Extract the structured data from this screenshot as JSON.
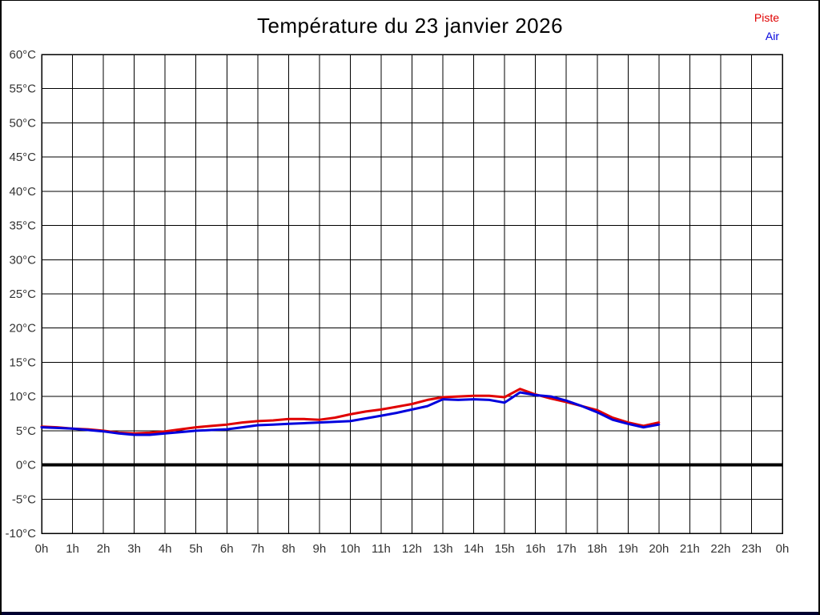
{
  "page": {
    "background": "#ffffff",
    "border_color": "#000000",
    "footer_bar_color": "#000030"
  },
  "header": {
    "title": "Température du 23 janvier 2026"
  },
  "legend": {
    "items": [
      {
        "label": "Piste",
        "color": "#e00000"
      },
      {
        "label": "Air",
        "color": "#0000dd"
      }
    ]
  },
  "chart_data": {
    "type": "line",
    "title": "Température du 23 janvier 2026",
    "xlabel": "",
    "ylabel": "",
    "xlim": [
      0,
      24
    ],
    "ylim": [
      -10,
      60
    ],
    "grid": true,
    "grid_color": "#000000",
    "zero_line": {
      "value": 0,
      "color": "#000000",
      "width": 4
    },
    "legend_position": "top-right",
    "x_tick_labels": [
      "0h",
      "1h",
      "2h",
      "3h",
      "4h",
      "5h",
      "6h",
      "7h",
      "8h",
      "9h",
      "10h",
      "11h",
      "12h",
      "13h",
      "14h",
      "15h",
      "16h",
      "17h",
      "18h",
      "19h",
      "20h",
      "21h",
      "22h",
      "23h",
      "0h"
    ],
    "x_tick_values": [
      0,
      1,
      2,
      3,
      4,
      5,
      6,
      7,
      8,
      9,
      10,
      11,
      12,
      13,
      14,
      15,
      16,
      17,
      18,
      19,
      20,
      21,
      22,
      23,
      24
    ],
    "y_tick_labels": [
      "60°C",
      "55°C",
      "50°C",
      "45°C",
      "40°C",
      "35°C",
      "30°C",
      "25°C",
      "20°C",
      "15°C",
      "10°C",
      "5°C",
      "0°C",
      "-5°C",
      "-10°C"
    ],
    "y_tick_values": [
      60,
      55,
      50,
      45,
      40,
      35,
      30,
      25,
      20,
      15,
      10,
      5,
      0,
      -5,
      -10
    ],
    "x": [
      0,
      0.5,
      1,
      1.5,
      2,
      2.5,
      3,
      3.5,
      4,
      4.5,
      5,
      5.5,
      6,
      6.5,
      7,
      7.5,
      8,
      8.5,
      9,
      9.5,
      10,
      10.5,
      11,
      11.5,
      12,
      12.5,
      13,
      13.5,
      14,
      14.5,
      15,
      15.5,
      16,
      16.5,
      17,
      17.5,
      18,
      18.5,
      19,
      19.5,
      20
    ],
    "series": [
      {
        "name": "Piste",
        "color": "#e00000",
        "values": [
          5.6,
          5.5,
          5.3,
          5.2,
          5.0,
          4.7,
          4.6,
          4.7,
          4.9,
          5.2,
          5.5,
          5.7,
          5.9,
          6.2,
          6.4,
          6.5,
          6.7,
          6.7,
          6.6,
          6.9,
          7.4,
          7.8,
          8.1,
          8.5,
          8.9,
          9.5,
          9.9,
          10.0,
          10.1,
          10.1,
          9.9,
          11.1,
          10.3,
          9.7,
          9.2,
          8.6,
          8.0,
          6.9,
          6.2,
          5.7,
          6.2
        ]
      },
      {
        "name": "Air",
        "color": "#0000dd",
        "values": [
          5.5,
          5.4,
          5.3,
          5.1,
          4.9,
          4.6,
          4.4,
          4.4,
          4.6,
          4.8,
          5.0,
          5.1,
          5.2,
          5.5,
          5.8,
          5.9,
          6.0,
          6.1,
          6.2,
          6.3,
          6.4,
          6.8,
          7.2,
          7.6,
          8.1,
          8.6,
          9.6,
          9.5,
          9.6,
          9.5,
          9.1,
          10.6,
          10.2,
          10.0,
          9.4,
          8.6,
          7.7,
          6.6,
          6.0,
          5.5,
          5.9
        ]
      }
    ]
  }
}
